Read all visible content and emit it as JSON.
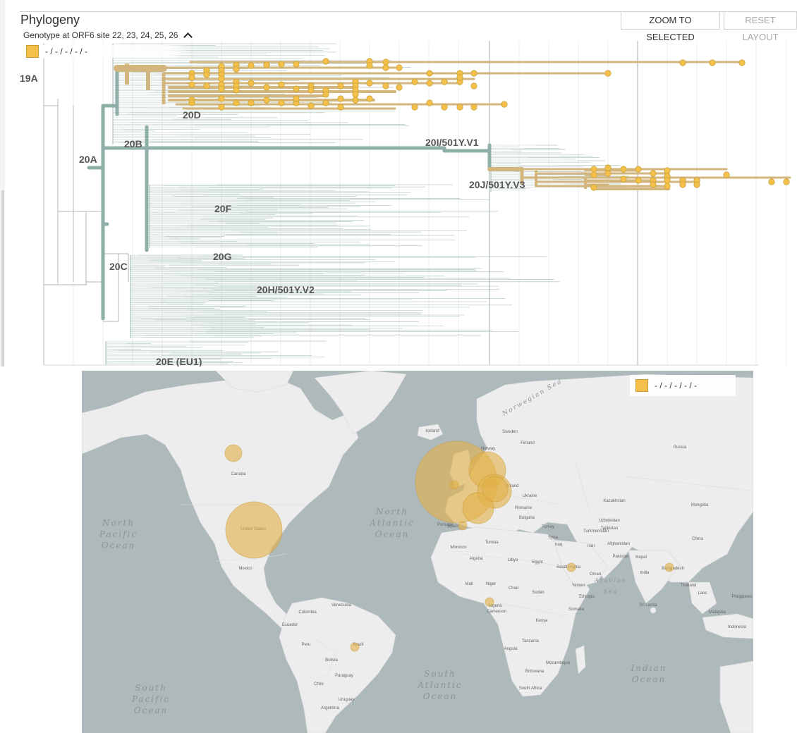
{
  "panel": {
    "title": "Phylogeny",
    "subtitle": "Genotype at ORF6 site 22, 23, 24, 25, 26",
    "zoom_button": "ZOOM TO SELECTED",
    "reset_button": "RESET LAYOUT",
    "legend_label": "- / - / - / - / -"
  },
  "colors": {
    "selected": "#d2b67e",
    "selected_tip": "#f4c04a",
    "branch": "#9cb8b1",
    "clade_line": "#8fb0a9"
  },
  "clades": [
    {
      "name": "19A"
    },
    {
      "name": "20A"
    },
    {
      "name": "20B"
    },
    {
      "name": "20C"
    },
    {
      "name": "20D"
    },
    {
      "name": "20E (EU1)"
    },
    {
      "name": "20F"
    },
    {
      "name": "20G"
    },
    {
      "name": "20H/501Y.V2"
    },
    {
      "name": "20I/501Y.V1"
    },
    {
      "name": "20J/501Y.V3"
    }
  ],
  "map": {
    "legend_label": "- / - / - / - / -",
    "oceans": [
      {
        "lines": [
          "North",
          "Pacific",
          "Ocean"
        ]
      },
      {
        "lines": [
          "North",
          "Atlantic",
          "Ocean"
        ]
      },
      {
        "lines": [
          "South",
          "Pacific",
          "Ocean"
        ]
      },
      {
        "lines": [
          "South",
          "Atlantic",
          "Ocean"
        ]
      },
      {
        "lines": [
          "Indian",
          "Ocean"
        ]
      },
      {
        "lines": [
          "Norwegian Sea"
        ]
      },
      {
        "lines": [
          "Arabian",
          "Sea"
        ]
      }
    ],
    "countries": [
      "United States",
      "Canada",
      "Mexico",
      "Brazil",
      "Bolivia",
      "Peru",
      "Colombia",
      "Venezuela",
      "Ecuador",
      "Chile",
      "Paraguay",
      "Argentina",
      "Uruguay",
      "Russia",
      "Kazakhstan",
      "Mongolia",
      "China",
      "India",
      "Iran",
      "Saudi Arabia",
      "Egypt",
      "Libya",
      "Algeria",
      "Morocco",
      "Mali",
      "Niger",
      "Chad",
      "Sudan",
      "Nigeria",
      "Cameroon",
      "Kenya",
      "Angola",
      "Tanzania",
      "Botswana",
      "South Africa",
      "Mozambique",
      "Ukraine",
      "Poland",
      "Turkey",
      "Finland",
      "Sweden",
      "Norway",
      "Iceland",
      "Pakistan",
      "Afghanistan",
      "Nepal",
      "Bangladesh",
      "Thailand",
      "Malaysia",
      "Indonesia",
      "Philippines",
      "Laos",
      "Sri Lanka",
      "Oman",
      "Yemen",
      "Somalia",
      "Ethiopia",
      "Uzbekistan",
      "Turkmenistan",
      "Tajikistan",
      "Iraq",
      "Syria",
      "Spain",
      "Portugal",
      "Tunisia",
      "Romania",
      "Bulgaria"
    ]
  }
}
